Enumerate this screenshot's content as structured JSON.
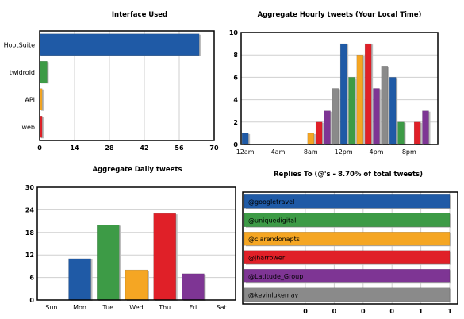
{
  "charts": [
    {
      "id": "interface",
      "type": "bar",
      "orientation": "horizontal",
      "title": "Interface Used",
      "categories": [
        "HootSuite",
        "twidroid",
        "API",
        "web"
      ],
      "values": [
        64,
        3,
        1,
        1
      ],
      "colors": [
        "#1f5aa6",
        "#3d9b46",
        "#f5a623",
        "#e02028"
      ],
      "xlim": [
        0,
        70
      ],
      "xticks": [
        "0",
        "14",
        "28",
        "42",
        "56",
        "70"
      ],
      "grid": true
    },
    {
      "id": "hourly",
      "type": "bar",
      "orientation": "vertical",
      "title": "Aggregate Hourly tweets (Your Local Time)",
      "hours": [
        0,
        1,
        2,
        3,
        4,
        5,
        6,
        7,
        8,
        9,
        10,
        11,
        12,
        13,
        14,
        15,
        16,
        17,
        18,
        19,
        20,
        21,
        22,
        23
      ],
      "values": [
        1,
        0,
        0,
        0,
        0,
        0,
        0,
        0,
        1,
        2,
        3,
        5,
        9,
        6,
        8,
        9,
        5,
        7,
        6,
        2,
        0,
        2,
        3,
        0
      ],
      "colors": [
        "#1f5aa6",
        "#3d9b46",
        "#f5a623",
        "#e02028",
        "#7e3594",
        "#8a8a8a"
      ],
      "ylim": [
        0,
        10
      ],
      "yticks": [
        "0",
        "2",
        "4",
        "6",
        "8",
        "10"
      ],
      "xtick_labels": [
        "12am",
        "4am",
        "8am",
        "12pm",
        "4pm",
        "8pm"
      ],
      "grid": true
    },
    {
      "id": "daily",
      "type": "bar",
      "orientation": "vertical",
      "title": "Aggregate Daily tweets",
      "categories": [
        "Sun",
        "Mon",
        "Tue",
        "Wed",
        "Thu",
        "Fri",
        "Sat"
      ],
      "values": [
        0,
        11,
        20,
        8,
        23,
        7,
        0
      ],
      "colors": [
        "#8a8a8a",
        "#1f5aa6",
        "#3d9b46",
        "#f5a623",
        "#e02028",
        "#7e3594",
        "#8a8a8a"
      ],
      "ylim": [
        0,
        30
      ],
      "yticks": [
        "0",
        "6",
        "12",
        "18",
        "24",
        "30"
      ],
      "grid": true
    },
    {
      "id": "replies",
      "type": "bar",
      "orientation": "horizontal",
      "title": "Replies To (@'s - 8.70% of total tweets)",
      "categories": [
        "@googletravel",
        "@uniquedigital",
        "@clarendonapts",
        "@jharrower",
        "@Latitude_Group",
        "@kevinlukemay"
      ],
      "values": [
        1,
        1,
        1,
        1,
        1,
        1
      ],
      "colors": [
        "#1f5aa6",
        "#3d9b46",
        "#f5a623",
        "#e02028",
        "#7e3594",
        "#8a8a8a"
      ],
      "xlim": [
        0,
        1
      ],
      "xticks": [
        "0",
        "0",
        "0",
        "0",
        "1",
        "1"
      ],
      "grid": true
    }
  ]
}
